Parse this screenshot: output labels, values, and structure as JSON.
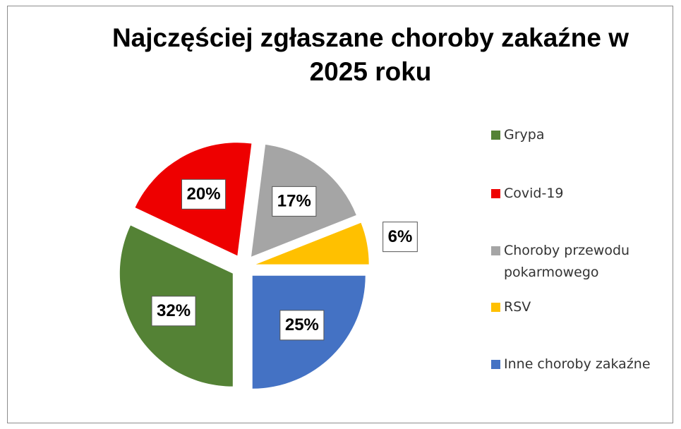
{
  "chart_data": {
    "type": "pie",
    "title": "Najczęściej zgłaszane choroby zakaźne w 2025 roku",
    "categories": [
      "Grypa",
      "Covid-19",
      "Choroby przewodu pokarmowego",
      "RSV",
      "Inne choroby zakaźne"
    ],
    "values": [
      32,
      20,
      17,
      6,
      25
    ],
    "value_labels": [
      "32%",
      "20%",
      "17%",
      "6%",
      "25%"
    ],
    "colors": [
      "#548235",
      "#ee0000",
      "#a5a5a5",
      "#ffc000",
      "#4472c4"
    ],
    "start_angle": 180,
    "legend": "right"
  }
}
